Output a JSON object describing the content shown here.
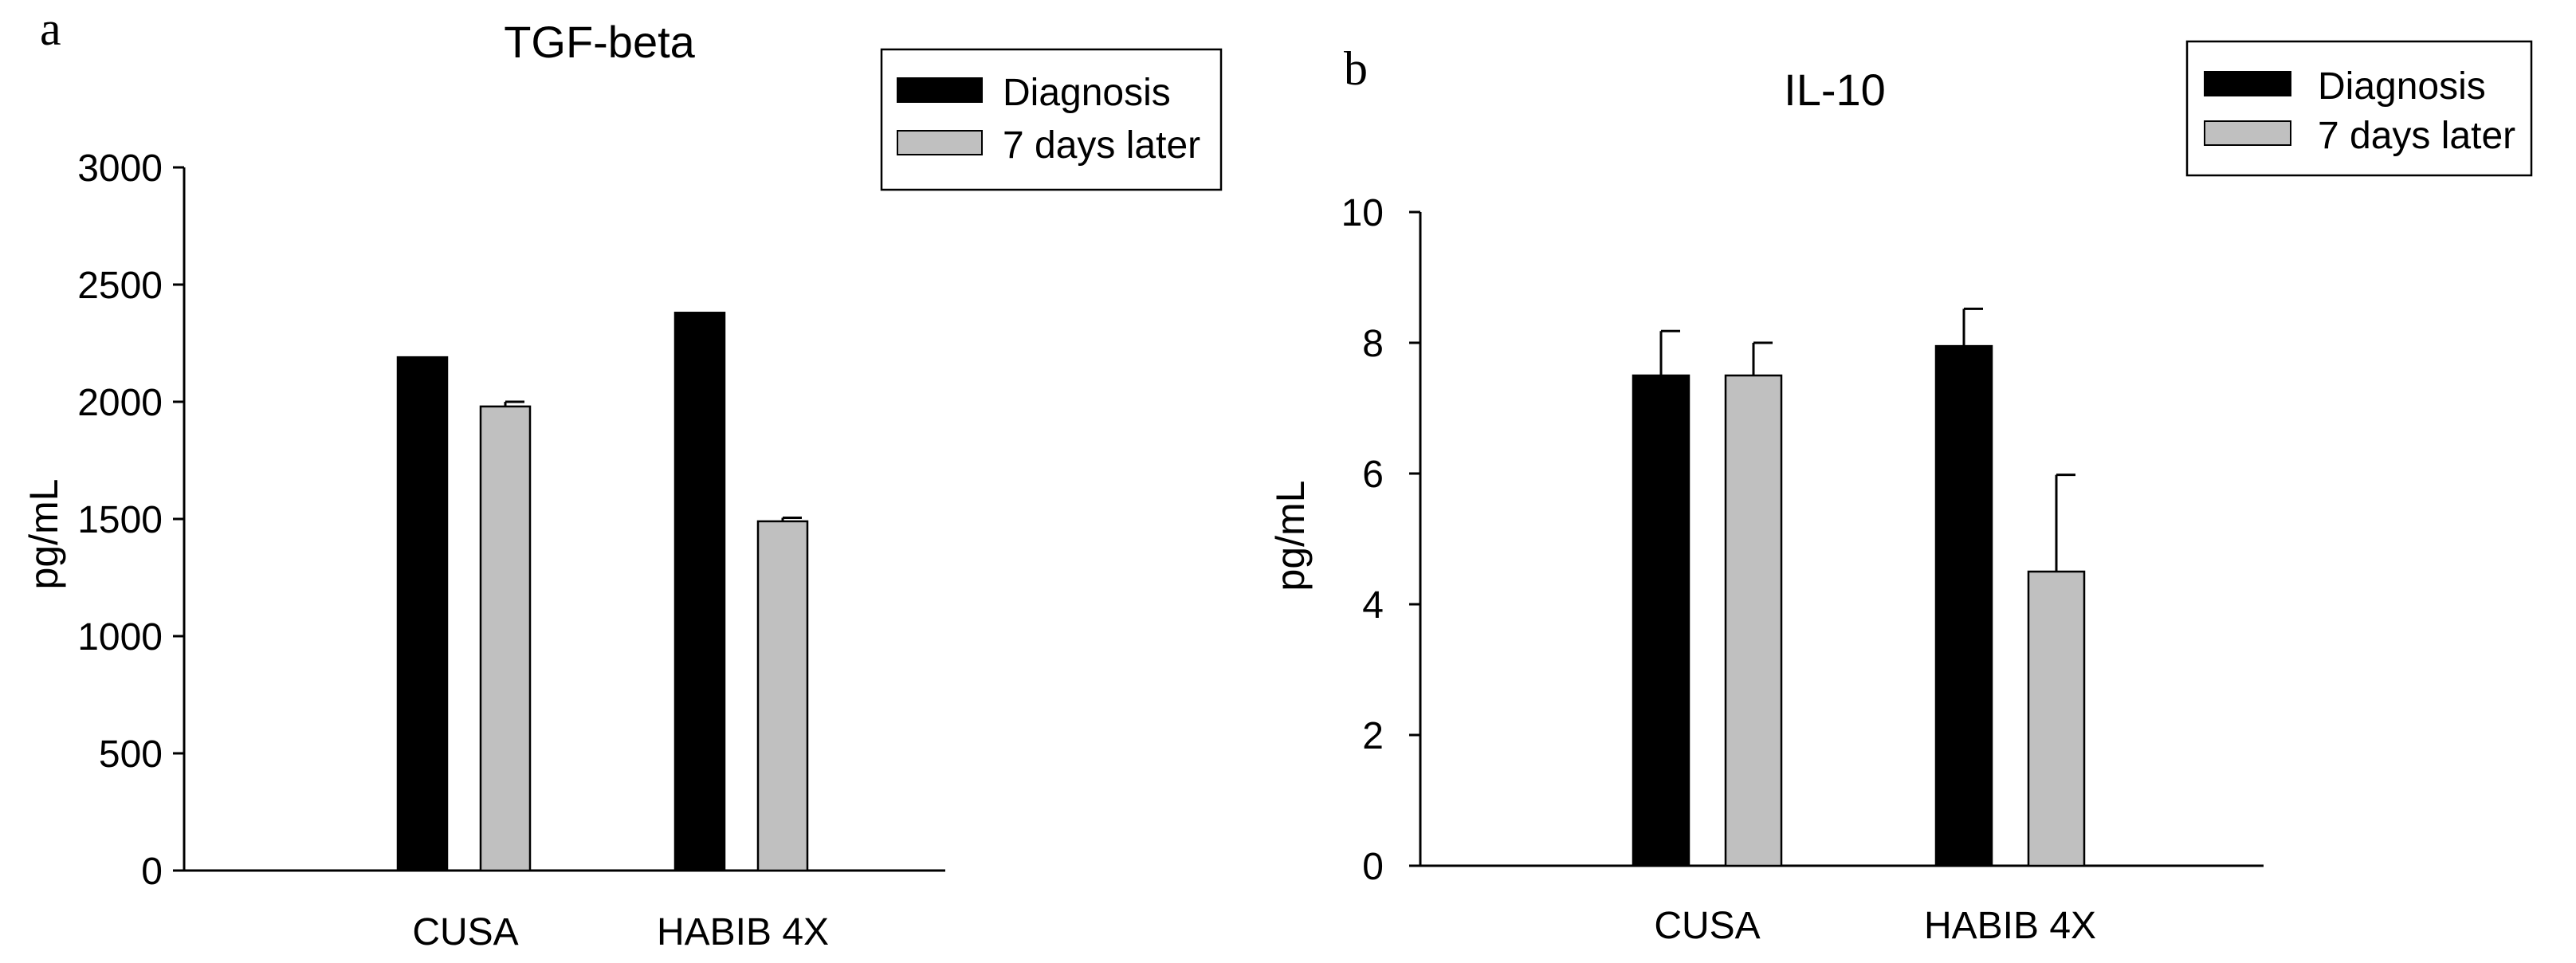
{
  "chart_data": [
    {
      "panel": "a",
      "type": "bar",
      "title": "TGF-beta",
      "xlabel": "",
      "ylabel": "pg/mL",
      "ylim": [
        0,
        3000
      ],
      "yticks": [
        0,
        500,
        1000,
        1500,
        2000,
        2500,
        3000
      ],
      "categories": [
        "CUSA",
        "HABIB 4X"
      ],
      "series": [
        {
          "name": "Diagnosis",
          "color": "#000000",
          "values": [
            2190,
            2380
          ],
          "errors": [
            0,
            0
          ]
        },
        {
          "name": "7 days later",
          "color": "#c0c0c0",
          "values": [
            1980,
            1490
          ],
          "errors": [
            20,
            15
          ]
        }
      ],
      "legend": "top-right"
    },
    {
      "panel": "b",
      "type": "bar",
      "title": "IL-10",
      "xlabel": "",
      "ylabel": "pg/mL",
      "ylim": [
        0,
        10
      ],
      "yticks": [
        0,
        2,
        4,
        6,
        8,
        10
      ],
      "categories": [
        "CUSA",
        "HABIB 4X"
      ],
      "series": [
        {
          "name": "Diagnosis",
          "color": "#000000",
          "values": [
            7.5,
            7.95
          ],
          "errors": [
            0.68,
            0.57
          ]
        },
        {
          "name": "7 days later",
          "color": "#c0c0c0",
          "values": [
            7.5,
            4.5
          ],
          "errors": [
            0.5,
            1.48
          ]
        }
      ],
      "legend": "top-right"
    }
  ]
}
